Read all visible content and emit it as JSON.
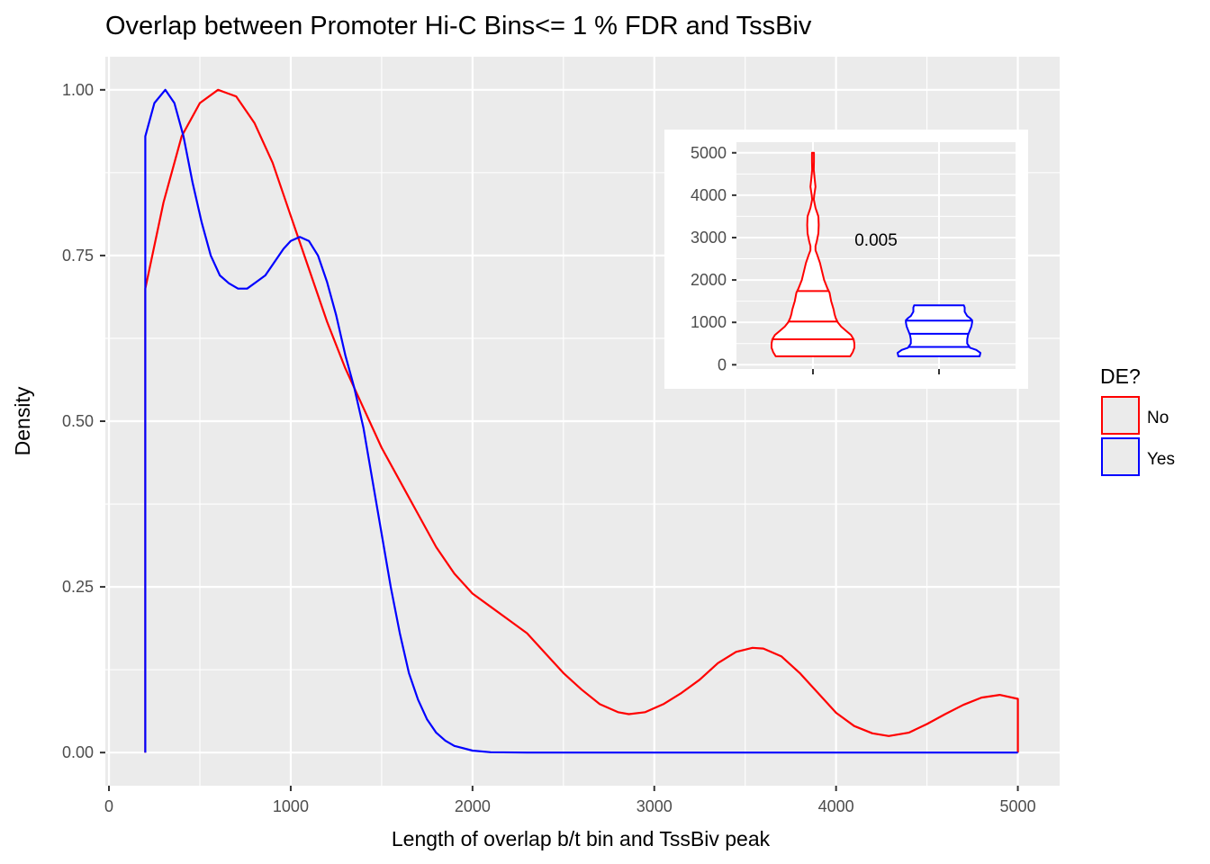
{
  "chart_data": [
    {
      "type": "line",
      "title": "Overlap between Promoter Hi-C Bins<= 1 % FDR and TssBiv",
      "xlabel": "Length of overlap b/t bin and TssBiv peak",
      "ylabel": "Density",
      "xlim": [
        -20,
        5230
      ],
      "ylim": [
        -0.05,
        1.05
      ],
      "x_ticks": [
        0,
        1000,
        2000,
        3000,
        4000,
        5000
      ],
      "x_tick_labels": [
        "0",
        "1000",
        "2000",
        "3000",
        "4000",
        "5000"
      ],
      "y_ticks": [
        0,
        0.25,
        0.5,
        0.75,
        1
      ],
      "y_tick_labels": [
        "0.00",
        "0.25",
        "0.50",
        "0.75",
        "1.00"
      ],
      "grid": true,
      "legend": {
        "title": "DE?",
        "position": "right",
        "entries": [
          {
            "label": "No",
            "color": "#ff0000"
          },
          {
            "label": "Yes",
            "color": "#0000ff"
          }
        ]
      },
      "series": [
        {
          "name": "No",
          "color": "#ff0000",
          "points": [
            [
              200,
              0
            ],
            [
              200,
              0.7
            ],
            [
              300,
              0.83
            ],
            [
              400,
              0.93
            ],
            [
              500,
              0.98
            ],
            [
              600,
              1.0
            ],
            [
              700,
              0.99
            ],
            [
              800,
              0.95
            ],
            [
              900,
              0.89
            ],
            [
              1000,
              0.81
            ],
            [
              1100,
              0.73
            ],
            [
              1200,
              0.65
            ],
            [
              1300,
              0.58
            ],
            [
              1400,
              0.52
            ],
            [
              1500,
              0.46
            ],
            [
              1600,
              0.41
            ],
            [
              1700,
              0.36
            ],
            [
              1800,
              0.31
            ],
            [
              1900,
              0.27
            ],
            [
              2000,
              0.24
            ],
            [
              2100,
              0.22
            ],
            [
              2200,
              0.2
            ],
            [
              2300,
              0.18
            ],
            [
              2400,
              0.15
            ],
            [
              2500,
              0.12
            ],
            [
              2600,
              0.095
            ],
            [
              2700,
              0.073
            ],
            [
              2800,
              0.061
            ],
            [
              2860,
              0.058
            ],
            [
              2950,
              0.061
            ],
            [
              3050,
              0.073
            ],
            [
              3150,
              0.09
            ],
            [
              3250,
              0.11
            ],
            [
              3350,
              0.135
            ],
            [
              3450,
              0.152
            ],
            [
              3540,
              0.158
            ],
            [
              3600,
              0.157
            ],
            [
              3700,
              0.145
            ],
            [
              3800,
              0.12
            ],
            [
              3900,
              0.09
            ],
            [
              4000,
              0.06
            ],
            [
              4100,
              0.04
            ],
            [
              4200,
              0.029
            ],
            [
              4290,
              0.025
            ],
            [
              4400,
              0.03
            ],
            [
              4500,
              0.043
            ],
            [
              4600,
              0.058
            ],
            [
              4700,
              0.072
            ],
            [
              4800,
              0.083
            ],
            [
              4900,
              0.087
            ],
            [
              5000,
              0.081
            ],
            [
              5000,
              0
            ]
          ]
        },
        {
          "name": "Yes",
          "color": "#0000ff",
          "points": [
            [
              200,
              0
            ],
            [
              200,
              0.93
            ],
            [
              250,
              0.98
            ],
            [
              310,
              1.0
            ],
            [
              360,
              0.98
            ],
            [
              410,
              0.93
            ],
            [
              460,
              0.86
            ],
            [
              510,
              0.8
            ],
            [
              560,
              0.75
            ],
            [
              610,
              0.72
            ],
            [
              660,
              0.708
            ],
            [
              710,
              0.7
            ],
            [
              760,
              0.7
            ],
            [
              810,
              0.71
            ],
            [
              860,
              0.72
            ],
            [
              910,
              0.74
            ],
            [
              960,
              0.76
            ],
            [
              1000,
              0.772
            ],
            [
              1050,
              0.778
            ],
            [
              1100,
              0.772
            ],
            [
              1150,
              0.75
            ],
            [
              1200,
              0.71
            ],
            [
              1250,
              0.66
            ],
            [
              1300,
              0.6
            ],
            [
              1350,
              0.55
            ],
            [
              1400,
              0.49
            ],
            [
              1450,
              0.41
            ],
            [
              1500,
              0.33
            ],
            [
              1550,
              0.25
            ],
            [
              1600,
              0.18
            ],
            [
              1650,
              0.12
            ],
            [
              1700,
              0.08
            ],
            [
              1750,
              0.05
            ],
            [
              1800,
              0.03
            ],
            [
              1850,
              0.018
            ],
            [
              1900,
              0.01
            ],
            [
              2000,
              0.003
            ],
            [
              2100,
              0.0005
            ],
            [
              2300,
              0
            ],
            [
              3000,
              0
            ],
            [
              5000,
              0
            ]
          ]
        }
      ]
    },
    {
      "type": "violin",
      "categories": [
        "No",
        "Yes"
      ],
      "ylim": [
        -100,
        5250
      ],
      "y_ticks": [
        0,
        1000,
        2000,
        3000,
        4000,
        5000
      ],
      "y_tick_labels": [
        "0",
        "1000",
        "2000",
        "3000",
        "4000",
        "5000"
      ],
      "x_tick_labels": [
        "",
        ""
      ],
      "annotation": "0.005",
      "series": [
        {
          "name": "No",
          "color": "#ff0000",
          "range": [
            200,
            5000
          ],
          "quantiles": [
            600,
            1020,
            1740
          ],
          "half_width_profile": [
            [
              200,
              0.9
            ],
            [
              300,
              0.96
            ],
            [
              400,
              1.0
            ],
            [
              500,
              1.0
            ],
            [
              600,
              0.98
            ],
            [
              700,
              0.92
            ],
            [
              800,
              0.8
            ],
            [
              900,
              0.68
            ],
            [
              1000,
              0.6
            ],
            [
              1100,
              0.55
            ],
            [
              1200,
              0.52
            ],
            [
              1300,
              0.5
            ],
            [
              1400,
              0.47
            ],
            [
              1500,
              0.44
            ],
            [
              1600,
              0.42
            ],
            [
              1700,
              0.4
            ],
            [
              1800,
              0.35
            ],
            [
              2000,
              0.27
            ],
            [
              2200,
              0.22
            ],
            [
              2400,
              0.17
            ],
            [
              2600,
              0.1
            ],
            [
              2700,
              0.06
            ],
            [
              2800,
              0.06
            ],
            [
              2900,
              0.09
            ],
            [
              3100,
              0.13
            ],
            [
              3300,
              0.14
            ],
            [
              3500,
              0.13
            ],
            [
              3700,
              0.06
            ],
            [
              3900,
              0.02
            ],
            [
              4000,
              0.03
            ],
            [
              4200,
              0.06
            ],
            [
              4400,
              0.04
            ],
            [
              4600,
              0.02
            ],
            [
              4800,
              0.025
            ],
            [
              5000,
              0.025
            ]
          ]
        },
        {
          "name": "Yes",
          "color": "#0000ff",
          "range": [
            200,
            1400
          ],
          "quantiles": [
            420,
            730,
            1040
          ],
          "half_width_profile": [
            [
              200,
              0.98
            ],
            [
              280,
              1.0
            ],
            [
              350,
              0.9
            ],
            [
              400,
              0.75
            ],
            [
              500,
              0.68
            ],
            [
              600,
              0.68
            ],
            [
              700,
              0.7
            ],
            [
              800,
              0.74
            ],
            [
              900,
              0.78
            ],
            [
              1000,
              0.8
            ],
            [
              1050,
              0.8
            ],
            [
              1100,
              0.75
            ],
            [
              1150,
              0.68
            ],
            [
              1250,
              0.62
            ],
            [
              1350,
              0.62
            ],
            [
              1400,
              0.6
            ]
          ]
        }
      ]
    }
  ]
}
